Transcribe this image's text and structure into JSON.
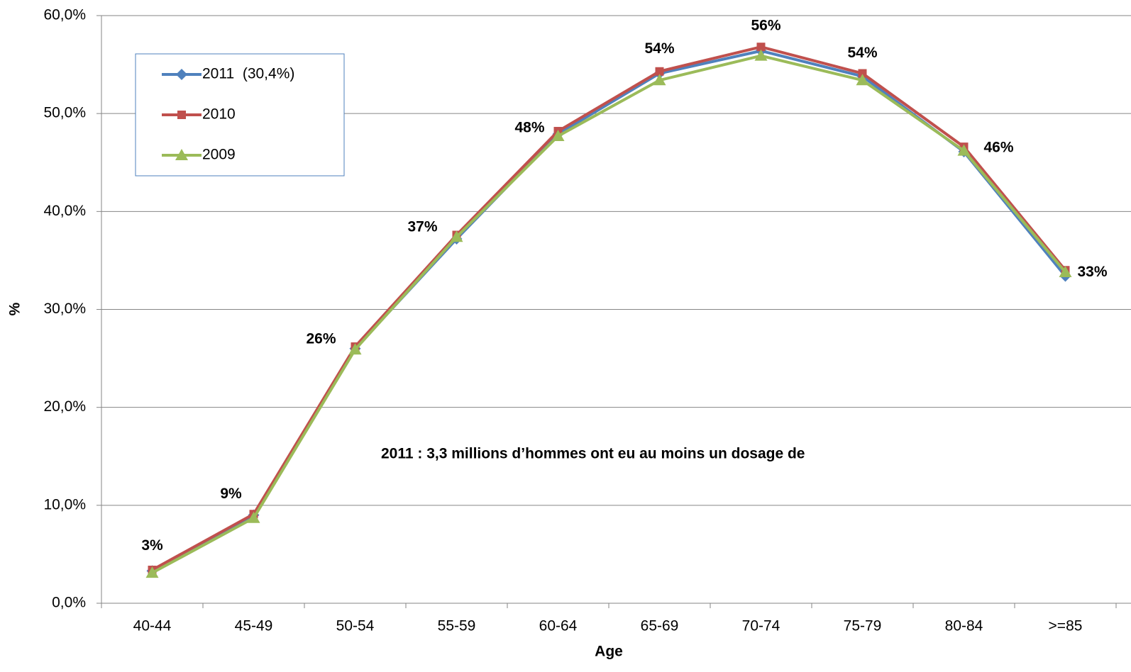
{
  "chart_data": {
    "type": "line",
    "categories": [
      "40-44",
      "45-49",
      "50-54",
      "55-59",
      "60-64",
      "65-69",
      "70-74",
      "75-79",
      "80-84",
      ">=85"
    ],
    "series": [
      {
        "name": "2011  (30,4%)",
        "color": "#4f81bd",
        "marker": "diamond",
        "values": [
          3.3,
          9.0,
          26.0,
          37.2,
          47.9,
          54.1,
          56.4,
          53.8,
          46.1,
          33.4
        ],
        "value_labels": [
          "3%",
          "9%",
          "26%",
          "37%",
          "48%",
          "54%",
          "56%",
          "54%",
          "46%",
          "33%"
        ]
      },
      {
        "name": "2010",
        "color": "#c0504d",
        "marker": "square",
        "values": [
          3.4,
          9.1,
          26.2,
          37.6,
          48.2,
          54.3,
          56.8,
          54.1,
          46.6,
          34.0
        ]
      },
      {
        "name": "2009",
        "color": "#9bbb59",
        "marker": "triangle",
        "values": [
          3.1,
          8.7,
          25.9,
          37.4,
          47.7,
          53.4,
          55.9,
          53.4,
          46.2,
          33.8
        ]
      }
    ],
    "ylim": [
      0,
      60
    ],
    "yticks": [
      {
        "value": 0,
        "label": "0,0%"
      },
      {
        "value": 10,
        "label": "10,0%"
      },
      {
        "value": 20,
        "label": "20,0%"
      },
      {
        "value": 30,
        "label": "30,0%"
      },
      {
        "value": 40,
        "label": "40,0%"
      },
      {
        "value": 50,
        "label": "50,0%"
      },
      {
        "value": 60,
        "label": "60,0%"
      }
    ],
    "grid": true,
    "legend": "top-left",
    "x_label": "Age",
    "y_label": "%",
    "annotation": "2011 : 3,3 millions d’hommes ont eu au moins un dosage de",
    "annotation_color": "#1e8c1e",
    "value_label_color": "#1f497d"
  }
}
